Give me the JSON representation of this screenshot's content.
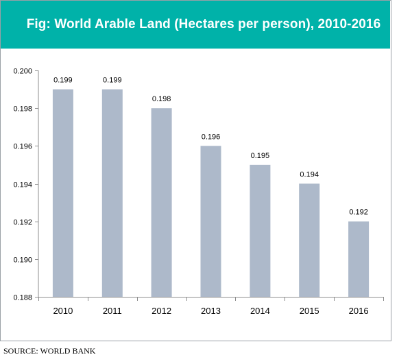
{
  "chart_data": {
    "type": "bar",
    "title": "Fig: World Arable Land (Hectares per person), 2010-2016",
    "categories": [
      "2010",
      "2011",
      "2012",
      "2013",
      "2014",
      "2015",
      "2016"
    ],
    "values": [
      0.199,
      0.199,
      0.198,
      0.196,
      0.195,
      0.194,
      0.192
    ],
    "data_labels": [
      "0.199",
      "0.199",
      "0.198",
      "0.196",
      "0.195",
      "0.194",
      "0.192"
    ],
    "ylim": [
      0.188,
      0.2
    ],
    "yticks": [
      0.188,
      0.19,
      0.192,
      0.194,
      0.196,
      0.198,
      0.2
    ],
    "ytick_labels": [
      "0.188",
      "0.190",
      "0.192",
      "0.194",
      "0.196",
      "0.198",
      "0.200"
    ],
    "xlabel": "",
    "ylabel": "",
    "grid": false,
    "legend": "none",
    "bar_color": "#adb9ca",
    "title_bar_color": "#00b2a9"
  },
  "source_text": "SOURCE: WORLD BANK"
}
